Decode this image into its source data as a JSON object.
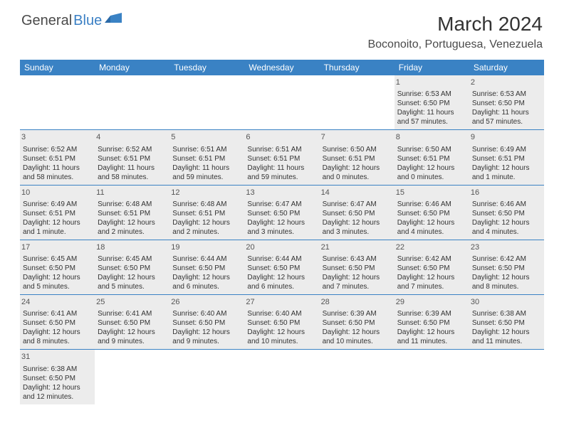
{
  "logo": {
    "part1": "General",
    "part2": "Blue"
  },
  "title": "March 2024",
  "location": "Boconoito, Portuguesa, Venezuela",
  "colors": {
    "header_bg": "#3a82c4",
    "header_text": "#ffffff",
    "cell_bg": "#ececec",
    "border": "#3a82c4",
    "text": "#333333",
    "logo_gray": "#4a4a4a",
    "logo_blue": "#3a7fc4"
  },
  "day_names": [
    "Sunday",
    "Monday",
    "Tuesday",
    "Wednesday",
    "Thursday",
    "Friday",
    "Saturday"
  ],
  "weeks": [
    [
      null,
      null,
      null,
      null,
      null,
      {
        "n": "1",
        "sunrise": "Sunrise: 6:53 AM",
        "sunset": "Sunset: 6:50 PM",
        "daylight": "Daylight: 11 hours and 57 minutes."
      },
      {
        "n": "2",
        "sunrise": "Sunrise: 6:53 AM",
        "sunset": "Sunset: 6:50 PM",
        "daylight": "Daylight: 11 hours and 57 minutes."
      }
    ],
    [
      {
        "n": "3",
        "sunrise": "Sunrise: 6:52 AM",
        "sunset": "Sunset: 6:51 PM",
        "daylight": "Daylight: 11 hours and 58 minutes."
      },
      {
        "n": "4",
        "sunrise": "Sunrise: 6:52 AM",
        "sunset": "Sunset: 6:51 PM",
        "daylight": "Daylight: 11 hours and 58 minutes."
      },
      {
        "n": "5",
        "sunrise": "Sunrise: 6:51 AM",
        "sunset": "Sunset: 6:51 PM",
        "daylight": "Daylight: 11 hours and 59 minutes."
      },
      {
        "n": "6",
        "sunrise": "Sunrise: 6:51 AM",
        "sunset": "Sunset: 6:51 PM",
        "daylight": "Daylight: 11 hours and 59 minutes."
      },
      {
        "n": "7",
        "sunrise": "Sunrise: 6:50 AM",
        "sunset": "Sunset: 6:51 PM",
        "daylight": "Daylight: 12 hours and 0 minutes."
      },
      {
        "n": "8",
        "sunrise": "Sunrise: 6:50 AM",
        "sunset": "Sunset: 6:51 PM",
        "daylight": "Daylight: 12 hours and 0 minutes."
      },
      {
        "n": "9",
        "sunrise": "Sunrise: 6:49 AM",
        "sunset": "Sunset: 6:51 PM",
        "daylight": "Daylight: 12 hours and 1 minute."
      }
    ],
    [
      {
        "n": "10",
        "sunrise": "Sunrise: 6:49 AM",
        "sunset": "Sunset: 6:51 PM",
        "daylight": "Daylight: 12 hours and 1 minute."
      },
      {
        "n": "11",
        "sunrise": "Sunrise: 6:48 AM",
        "sunset": "Sunset: 6:51 PM",
        "daylight": "Daylight: 12 hours and 2 minutes."
      },
      {
        "n": "12",
        "sunrise": "Sunrise: 6:48 AM",
        "sunset": "Sunset: 6:51 PM",
        "daylight": "Daylight: 12 hours and 2 minutes."
      },
      {
        "n": "13",
        "sunrise": "Sunrise: 6:47 AM",
        "sunset": "Sunset: 6:50 PM",
        "daylight": "Daylight: 12 hours and 3 minutes."
      },
      {
        "n": "14",
        "sunrise": "Sunrise: 6:47 AM",
        "sunset": "Sunset: 6:50 PM",
        "daylight": "Daylight: 12 hours and 3 minutes."
      },
      {
        "n": "15",
        "sunrise": "Sunrise: 6:46 AM",
        "sunset": "Sunset: 6:50 PM",
        "daylight": "Daylight: 12 hours and 4 minutes."
      },
      {
        "n": "16",
        "sunrise": "Sunrise: 6:46 AM",
        "sunset": "Sunset: 6:50 PM",
        "daylight": "Daylight: 12 hours and 4 minutes."
      }
    ],
    [
      {
        "n": "17",
        "sunrise": "Sunrise: 6:45 AM",
        "sunset": "Sunset: 6:50 PM",
        "daylight": "Daylight: 12 hours and 5 minutes."
      },
      {
        "n": "18",
        "sunrise": "Sunrise: 6:45 AM",
        "sunset": "Sunset: 6:50 PM",
        "daylight": "Daylight: 12 hours and 5 minutes."
      },
      {
        "n": "19",
        "sunrise": "Sunrise: 6:44 AM",
        "sunset": "Sunset: 6:50 PM",
        "daylight": "Daylight: 12 hours and 6 minutes."
      },
      {
        "n": "20",
        "sunrise": "Sunrise: 6:44 AM",
        "sunset": "Sunset: 6:50 PM",
        "daylight": "Daylight: 12 hours and 6 minutes."
      },
      {
        "n": "21",
        "sunrise": "Sunrise: 6:43 AM",
        "sunset": "Sunset: 6:50 PM",
        "daylight": "Daylight: 12 hours and 7 minutes."
      },
      {
        "n": "22",
        "sunrise": "Sunrise: 6:42 AM",
        "sunset": "Sunset: 6:50 PM",
        "daylight": "Daylight: 12 hours and 7 minutes."
      },
      {
        "n": "23",
        "sunrise": "Sunrise: 6:42 AM",
        "sunset": "Sunset: 6:50 PM",
        "daylight": "Daylight: 12 hours and 8 minutes."
      }
    ],
    [
      {
        "n": "24",
        "sunrise": "Sunrise: 6:41 AM",
        "sunset": "Sunset: 6:50 PM",
        "daylight": "Daylight: 12 hours and 8 minutes."
      },
      {
        "n": "25",
        "sunrise": "Sunrise: 6:41 AM",
        "sunset": "Sunset: 6:50 PM",
        "daylight": "Daylight: 12 hours and 9 minutes."
      },
      {
        "n": "26",
        "sunrise": "Sunrise: 6:40 AM",
        "sunset": "Sunset: 6:50 PM",
        "daylight": "Daylight: 12 hours and 9 minutes."
      },
      {
        "n": "27",
        "sunrise": "Sunrise: 6:40 AM",
        "sunset": "Sunset: 6:50 PM",
        "daylight": "Daylight: 12 hours and 10 minutes."
      },
      {
        "n": "28",
        "sunrise": "Sunrise: 6:39 AM",
        "sunset": "Sunset: 6:50 PM",
        "daylight": "Daylight: 12 hours and 10 minutes."
      },
      {
        "n": "29",
        "sunrise": "Sunrise: 6:39 AM",
        "sunset": "Sunset: 6:50 PM",
        "daylight": "Daylight: 12 hours and 11 minutes."
      },
      {
        "n": "30",
        "sunrise": "Sunrise: 6:38 AM",
        "sunset": "Sunset: 6:50 PM",
        "daylight": "Daylight: 12 hours and 11 minutes."
      }
    ],
    [
      {
        "n": "31",
        "sunrise": "Sunrise: 6:38 AM",
        "sunset": "Sunset: 6:50 PM",
        "daylight": "Daylight: 12 hours and 12 minutes."
      },
      null,
      null,
      null,
      null,
      null,
      null
    ]
  ]
}
